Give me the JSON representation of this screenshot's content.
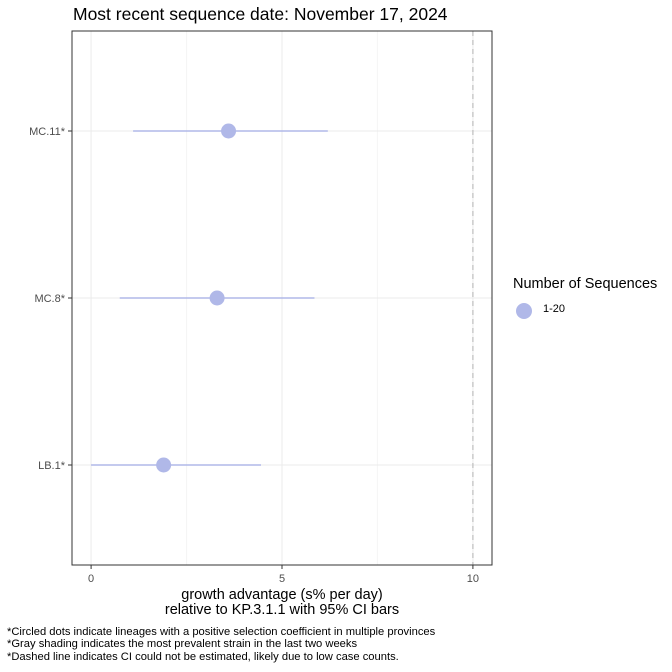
{
  "chart_data": {
    "type": "scatter",
    "title": "Most recent sequence date: November 17, 2024",
    "xlabel_lines": [
      "growth advantage (s% per day)",
      "relative to  KP.3.1.1  with 95% CI bars"
    ],
    "ylabel": "",
    "xlim": [
      -0.5,
      10.5
    ],
    "x_ticks": [
      0,
      5,
      10
    ],
    "dashed_vline_x": 10,
    "grid": true,
    "categories": [
      "MC.11*",
      "MC.8*",
      "LB.1*"
    ],
    "series": [
      {
        "name": "1-20",
        "points": [
          {
            "lineage": "MC.11*",
            "x": 3.6,
            "ci_low": 1.1,
            "ci_high": 6.2
          },
          {
            "lineage": "MC.8*",
            "x": 3.3,
            "ci_low": 0.75,
            "ci_high": 5.85
          },
          {
            "lineage": "LB.1*",
            "x": 1.9,
            "ci_low": 0.0,
            "ci_high": 4.45
          }
        ]
      }
    ],
    "legend": {
      "title": "Number of Sequences",
      "position": "right",
      "items": [
        {
          "label": "1-20",
          "color": "#b0b8e8"
        }
      ]
    }
  },
  "footnotes": [
    "*Circled dots indicate lineages with a positive selection coefficient in multiple provinces",
    "*Gray shading indicates the most prevalent strain in the last two weeks",
    "*Dashed line indicates CI could not be estimated, likely due to low case counts."
  ],
  "colors": {
    "point": "#b0b8e8",
    "ci_bar": "#b0b8e8",
    "grid_major": "#ebebeb",
    "grid_minor": "#f5f5f5",
    "panel_border": "#333333",
    "dashed_line": "#bdbdbd"
  }
}
